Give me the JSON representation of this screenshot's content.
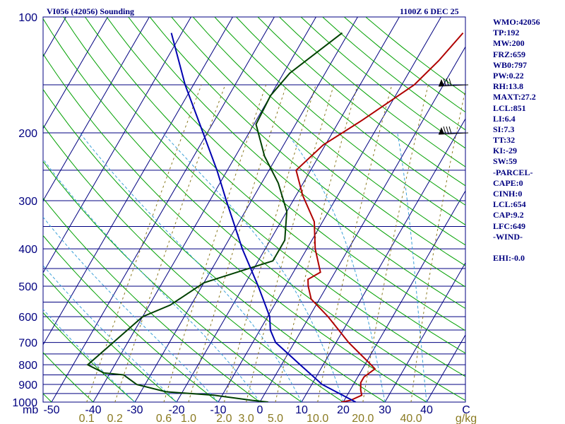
{
  "header": {
    "station": "VI056 (42056) Sounding",
    "time": "1100Z  6 DEC 25"
  },
  "stats": [
    "WMO:42056",
    "TP:192",
    "MW:200",
    "FRZ:659",
    "WB0:797",
    "PW:0.22",
    "RH:13.8",
    "MAXT:27.2",
    "LCL:851",
    "LI:6.4",
    "SI:7.3",
    "TT:32",
    "KI:-29",
    "SW:59",
    "-PARCEL-",
    "CAPE:0",
    "CINH:0",
    "LCL:654",
    "CAP:9.2",
    "LFC:649",
    "-WIND-",
    "",
    "EHI:-0.0"
  ],
  "chart_data": {
    "type": "line",
    "title": "VI056 (42056) Sounding",
    "subtitle": "1100Z  6 DEC 25",
    "y_scale": "log-pressure (inverted)",
    "ylabel": "mb",
    "xlabel": "C",
    "moisture_unit": "g/kg",
    "ylim": [
      1000,
      100
    ],
    "xlim": [
      -50,
      50
    ],
    "pressure_ticks": [
      1000,
      900,
      800,
      700,
      600,
      500,
      400,
      300,
      200,
      100
    ],
    "temperature_ticks": [
      -50,
      -40,
      -30,
      -20,
      -10,
      0,
      10,
      20,
      30,
      40
    ],
    "mixing_ratio_labels": [
      "0.1",
      "0.2",
      "0.6",
      "1.0",
      "2.0",
      "3.0",
      "5.0",
      "10.0",
      "20.0",
      "40.0"
    ],
    "wind_barb_levels": [
      150,
      200
    ],
    "series": [
      {
        "kind": "temperature",
        "color": "#b00000",
        "points": [
          [
            1000,
            19.5
          ],
          [
            990,
            21.5
          ],
          [
            960,
            23.5
          ],
          [
            930,
            22.5
          ],
          [
            890,
            21.5
          ],
          [
            860,
            21.5
          ],
          [
            820,
            23.0
          ],
          [
            800,
            21.5
          ],
          [
            700,
            13.0
          ],
          [
            600,
            4.5
          ],
          [
            540,
            -2.0
          ],
          [
            500,
            -4.5
          ],
          [
            480,
            -5.5
          ],
          [
            460,
            -3.5
          ],
          [
            400,
            -8.0
          ],
          [
            340,
            -12.0
          ],
          [
            290,
            -18.5
          ],
          [
            250,
            -23.5
          ],
          [
            215,
            -20.5
          ],
          [
            185,
            -14.5
          ],
          [
            150,
            -7.0
          ],
          [
            130,
            -4.5
          ],
          [
            110,
            -2.5
          ]
        ]
      },
      {
        "kind": "dewpoint",
        "color": "#004000",
        "points": [
          [
            1000,
            2.0
          ],
          [
            990,
            -2.0
          ],
          [
            960,
            -12.0
          ],
          [
            940,
            -24.0
          ],
          [
            900,
            -32.0
          ],
          [
            850,
            -36.5
          ],
          [
            840,
            -41.5
          ],
          [
            800,
            -46.5
          ],
          [
            600,
            -40.0
          ],
          [
            560,
            -35.0
          ],
          [
            490,
            -30.0
          ],
          [
            460,
            -23.5
          ],
          [
            430,
            -16.5
          ],
          [
            380,
            -16.5
          ],
          [
            320,
            -20.0
          ],
          [
            270,
            -26.0
          ],
          [
            230,
            -33.0
          ],
          [
            190,
            -39.5
          ],
          [
            160,
            -40.0
          ],
          [
            140,
            -38.5
          ],
          [
            110,
            -31.5
          ]
        ]
      },
      {
        "kind": "parcel",
        "color": "#0000b0",
        "points": [
          [
            1000,
            23.0
          ],
          [
            900,
            12.5
          ],
          [
            800,
            4.5
          ],
          [
            700,
            -4.5
          ],
          [
            650,
            -7.5
          ],
          [
            600,
            -9.5
          ],
          [
            500,
            -16.5
          ],
          [
            400,
            -25.5
          ],
          [
            300,
            -36.0
          ],
          [
            250,
            -42.5
          ],
          [
            200,
            -51.0
          ],
          [
            150,
            -62.0
          ],
          [
            110,
            -72.5
          ]
        ]
      }
    ]
  }
}
